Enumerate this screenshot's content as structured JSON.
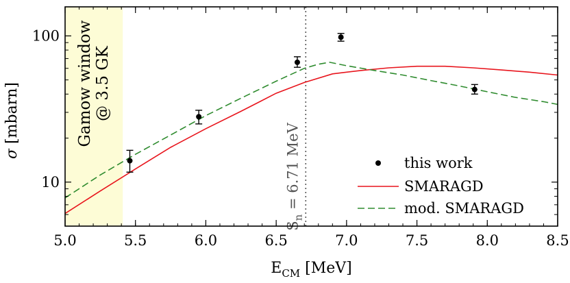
{
  "chart_data": {
    "type": "scatter",
    "xlabel_main": "E",
    "xlabel_sub": "CM",
    "xlabel_unit": " [MeV]",
    "ylabel_main": "σ",
    "ylabel_unit": " [mbarn]",
    "xlim": [
      5.0,
      8.5
    ],
    "ylim": [
      5.0,
      158
    ],
    "yscale": "log",
    "x_ticks": [
      5.0,
      5.5,
      6.0,
      6.5,
      7.0,
      7.5,
      8.0,
      8.5
    ],
    "x_tick_labels": [
      "5.0",
      "5.5",
      "6.0",
      "6.5",
      "7.0",
      "7.5",
      "8.0",
      "8.5"
    ],
    "y_ticks": [
      10,
      100
    ],
    "y_tick_labels": [
      "10",
      "100"
    ],
    "grid": false,
    "legend_position": "bottom-right",
    "gamow_window": {
      "x_range": [
        5.0,
        5.41
      ],
      "line1": "Gamow window",
      "line2": "@ 3.5 GK",
      "color": "#fdfcd6"
    },
    "neutron_threshold": {
      "x": 6.71,
      "label_main": "S",
      "label_sub": "n",
      "label_rest": " = 6.71 MeV",
      "color": "#555555"
    },
    "series": [
      {
        "name": "this work",
        "style": "points",
        "color": "#000000",
        "points": [
          {
            "x": 5.46,
            "y": 14.0,
            "err_low": 11.7,
            "err_high": 16.5
          },
          {
            "x": 5.95,
            "y": 28.0,
            "err_low": 25.0,
            "err_high": 31.0
          },
          {
            "x": 6.65,
            "y": 66.0,
            "err_low": 61.0,
            "err_high": 72.0
          },
          {
            "x": 6.96,
            "y": 98.0,
            "err_low": 92.0,
            "err_high": 104.0
          },
          {
            "x": 7.91,
            "y": 43.0,
            "err_low": 40.0,
            "err_high": 46.5
          }
        ]
      },
      {
        "name": "SMARAGD",
        "style": "solid",
        "color": "#e8141c",
        "x": [
          5.0,
          5.25,
          5.5,
          5.75,
          6.0,
          6.25,
          6.5,
          6.7,
          6.9,
          7.1,
          7.3,
          7.5,
          7.7,
          7.9,
          8.1,
          8.3,
          8.5
        ],
        "y": [
          6.1,
          8.7,
          12.3,
          17.3,
          23.2,
          30.5,
          40.5,
          48.0,
          55.0,
          58.0,
          60.5,
          62.0,
          62.0,
          60.5,
          58.5,
          56.5,
          54.0
        ]
      },
      {
        "name": "mod. SMARAGD",
        "style": "dashed",
        "color": "#2e8b2e",
        "x": [
          5.0,
          5.25,
          5.5,
          5.75,
          6.0,
          6.25,
          6.5,
          6.7,
          6.8,
          6.88,
          7.0,
          7.2,
          7.4,
          7.6,
          7.8,
          8.0,
          8.2,
          8.4,
          8.5
        ],
        "y": [
          7.8,
          11.2,
          15.5,
          21.0,
          28.5,
          37.5,
          49.0,
          60.0,
          64.0,
          66.0,
          62.5,
          58.0,
          54.0,
          49.5,
          45.5,
          41.5,
          38.0,
          35.5,
          34.0
        ]
      }
    ]
  }
}
